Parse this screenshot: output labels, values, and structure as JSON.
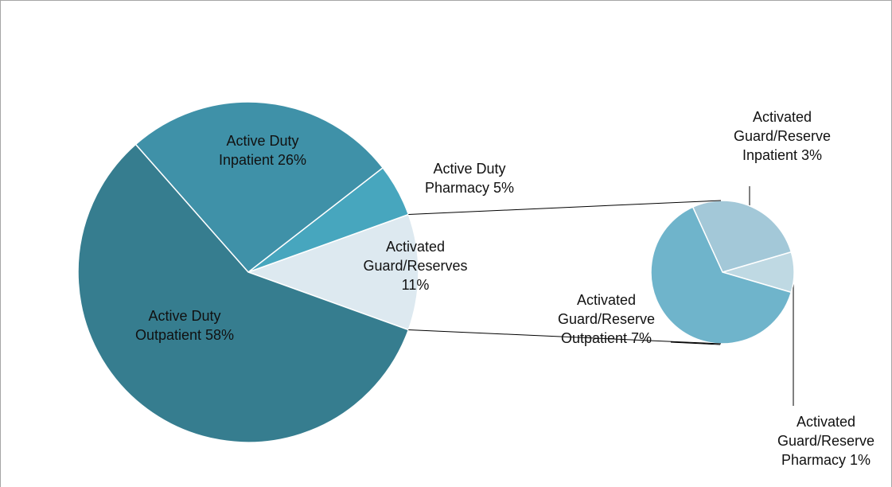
{
  "chart_data": {
    "type": "pie-of-pie",
    "categories": [
      "Active Duty Outpatient",
      "Active Duty Inpatient",
      "Active Duty Pharmacy",
      "Activated Guard/Reserves"
    ],
    "values": [
      58,
      26,
      5,
      11
    ],
    "value_labels": [
      "58%",
      "26%",
      "5%",
      "11%"
    ],
    "colors": [
      "#367d8f",
      "#3f91a8",
      "#47a6be",
      "#dde9f0"
    ],
    "secondary": {
      "categories": [
        "Activated Guard/Reserve Outpatient",
        "Activated Guard/Reserve Inpatient",
        "Activated Guard/Reserve Pharmacy"
      ],
      "values": [
        7,
        3,
        1
      ],
      "value_labels": [
        "7%",
        "3%",
        "1%"
      ],
      "colors": [
        "#6fb4cb",
        "#a3c8d8",
        "#bfd9e3"
      ]
    }
  }
}
